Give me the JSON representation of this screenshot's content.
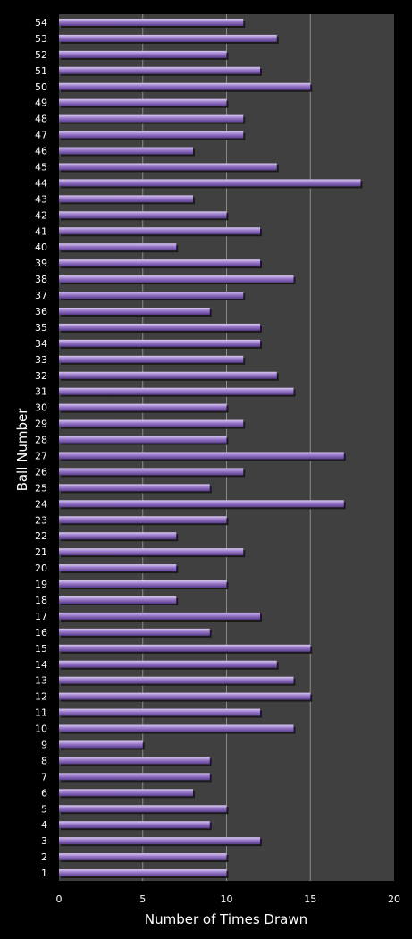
{
  "chart_data": {
    "type": "bar",
    "orientation": "horizontal",
    "xlabel": "Number of Times Drawn",
    "ylabel": "Ball Number",
    "xlim": [
      0,
      20
    ],
    "xticks": [
      0,
      5,
      10,
      15,
      20
    ],
    "grid": "vertical",
    "legend": "none",
    "colors": {
      "background": "#000000",
      "plot_area": "#404040",
      "gridline": "#8a8a8a",
      "bar_top": "#d8c8f0",
      "bar_mid": "#9878c8",
      "bar_bottom": "#5a3c8c",
      "text": "#ffffff"
    },
    "categories": [
      "1",
      "2",
      "3",
      "4",
      "5",
      "6",
      "7",
      "8",
      "9",
      "10",
      "11",
      "12",
      "13",
      "14",
      "15",
      "16",
      "17",
      "18",
      "19",
      "20",
      "21",
      "22",
      "23",
      "24",
      "25",
      "26",
      "27",
      "28",
      "29",
      "30",
      "31",
      "32",
      "33",
      "34",
      "35",
      "36",
      "37",
      "38",
      "39",
      "40",
      "41",
      "42",
      "43",
      "44",
      "45",
      "46",
      "47",
      "48",
      "49",
      "50",
      "51",
      "52",
      "53",
      "54"
    ],
    "values": [
      10,
      10,
      12,
      9,
      10,
      8,
      9,
      9,
      5,
      14,
      12,
      15,
      14,
      13,
      15,
      9,
      12,
      7,
      10,
      7,
      11,
      7,
      10,
      17,
      9,
      11,
      17,
      10,
      11,
      10,
      14,
      13,
      11,
      12,
      12,
      9,
      11,
      14,
      12,
      7,
      12,
      10,
      8,
      18,
      13,
      8,
      11,
      11,
      10,
      15,
      12,
      10,
      13,
      11
    ]
  }
}
